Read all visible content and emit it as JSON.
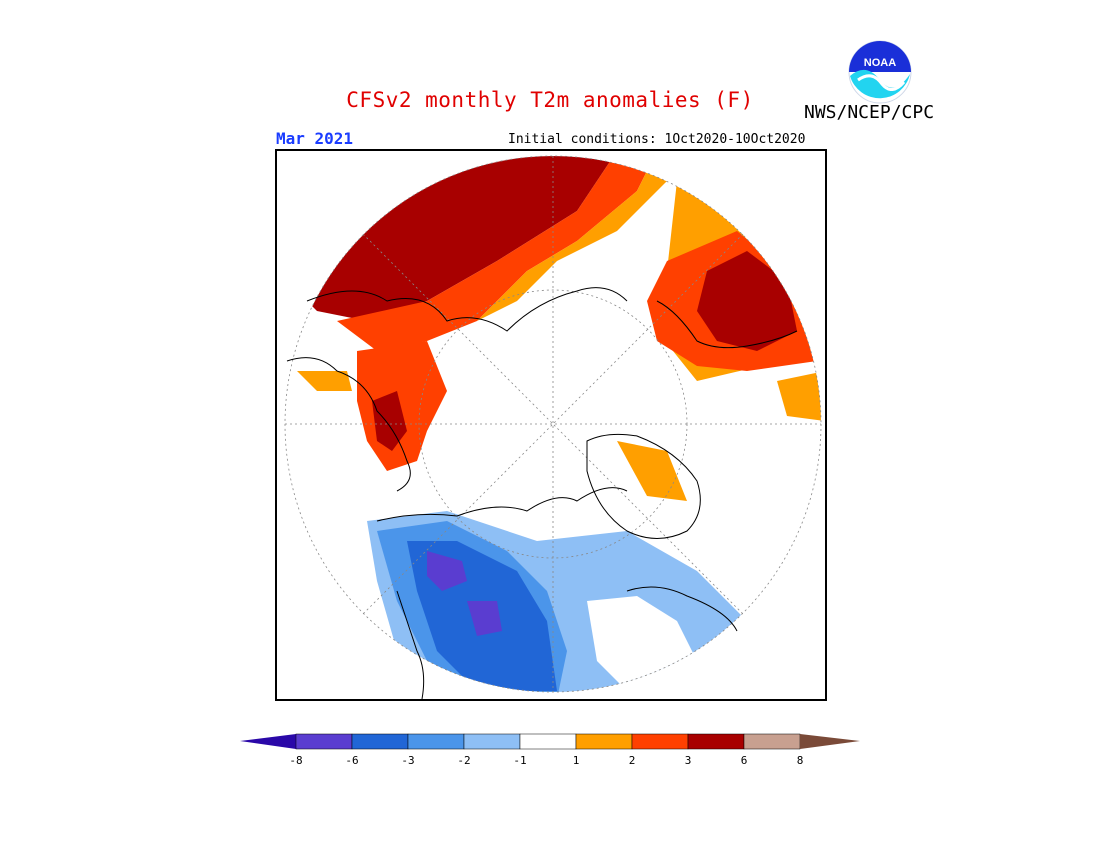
{
  "title": "CFSv2 monthly T2m anomalies (F)",
  "agency": "NWS/NCEP/CPC",
  "logo_text": "NOAA",
  "month": "Mar 2021",
  "initial_conditions": "Initial conditions: 1Oct2020-10Oct2020",
  "colorbar": {
    "colors": [
      "#2a08a8",
      "#5a3dd0",
      "#2166d6",
      "#4b95ea",
      "#8ebff5",
      "#ffffff",
      "#ff9f00",
      "#ff4000",
      "#a80000",
      "#c8a090",
      "#7a4a38"
    ],
    "ticks": [
      "-8",
      "-6",
      "-3",
      "-2",
      "-1",
      "1",
      "2",
      "3",
      "6",
      "8"
    ]
  },
  "legend_category_colors": {
    "below_-8": "#2a08a8",
    "-8_to_-6": "#5a3dd0",
    "-6_to_-3": "#2166d6",
    "-3_to_-2": "#4b95ea",
    "-2_to_-1": "#8ebff5",
    "-1_to_1": "#ffffff",
    "1_to_2": "#ff9f00",
    "2_to_3": "#ff4000",
    "3_to_6": "#a80000",
    "6_to_8": "#c8a090",
    "above_8": "#7a4a38"
  }
}
